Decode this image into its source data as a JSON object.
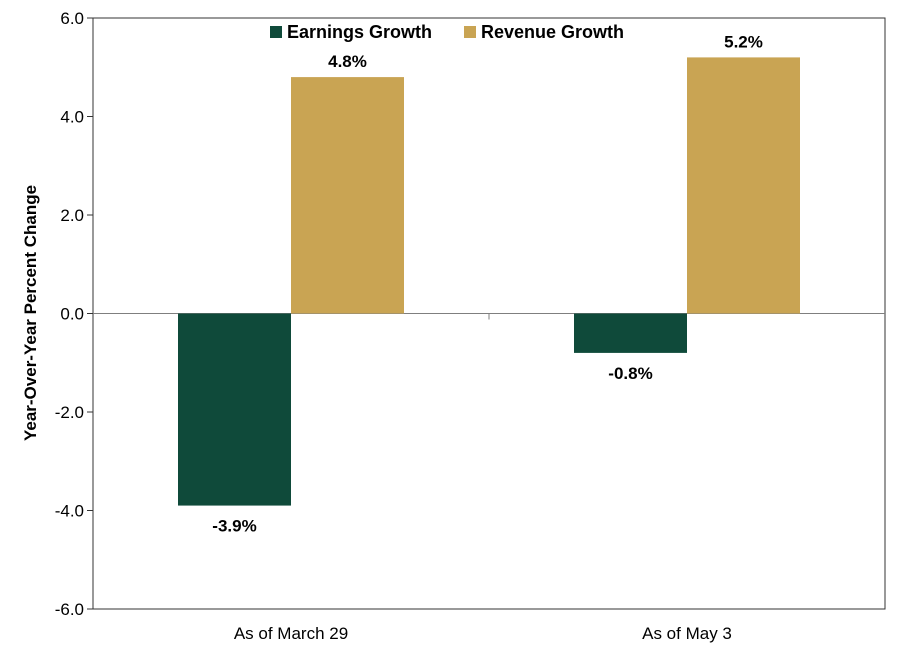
{
  "chart_data": {
    "type": "bar",
    "categories": [
      "As of March 29",
      "As of May 3"
    ],
    "series": [
      {
        "name": "Earnings Growth",
        "values": [
          -3.9,
          -0.8
        ],
        "labels": [
          "-3.9%",
          "-0.8%"
        ],
        "color": "#0f4a3a"
      },
      {
        "name": "Revenue Growth",
        "values": [
          4.8,
          5.2
        ],
        "labels": [
          "4.8%",
          "5.2%"
        ],
        "color": "#c9a453"
      }
    ],
    "ylabel": "Year-Over-Year Percent Change",
    "ylim": [
      -6.0,
      6.0
    ],
    "yticks": [
      "-6.0",
      "-4.0",
      "-2.0",
      "0.0",
      "2.0",
      "4.0",
      "6.0"
    ],
    "legend_position": "top-center",
    "grid": false
  }
}
